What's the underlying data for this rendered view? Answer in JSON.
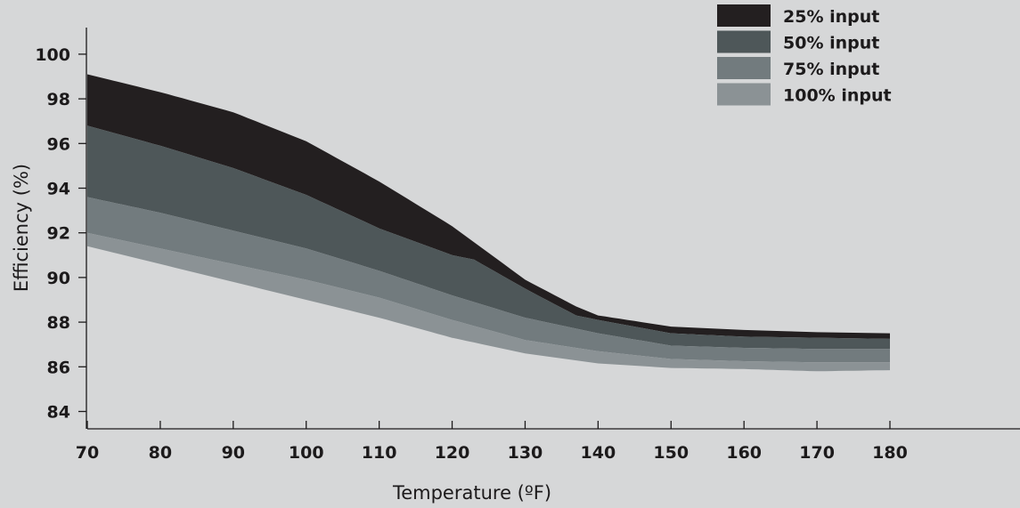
{
  "chart_data": {
    "type": "area",
    "title": "",
    "xlabel": "Temperature (ºF)",
    "ylabel": "Efficiency (%)",
    "xlim": [
      70,
      180
    ],
    "ylim": [
      83,
      101
    ],
    "x_ticks": [
      "70",
      "80",
      "90",
      "100",
      "110",
      "120",
      "130",
      "140",
      "150",
      "160",
      "170",
      "180"
    ],
    "y_ticks": [
      "84",
      "86",
      "88",
      "90",
      "92",
      "94",
      "96",
      "98",
      "100"
    ],
    "grid": false,
    "legend_position": "top-right",
    "series": [
      {
        "name": "25% input",
        "color": "#231f20",
        "x": [
          70,
          80,
          90,
          100,
          110,
          120,
          130,
          137,
          140,
          150,
          160,
          170,
          180
        ],
        "values": [
          99.1,
          98.3,
          97.4,
          96.1,
          94.3,
          92.3,
          89.9,
          88.7,
          88.3,
          87.8,
          87.65,
          87.55,
          87.5
        ]
      },
      {
        "name": "50% input",
        "color": "#4e5759",
        "x": [
          70,
          80,
          90,
          100,
          110,
          120,
          123,
          130,
          137,
          140,
          150,
          160,
          170,
          180
        ],
        "values": [
          96.8,
          95.9,
          94.9,
          93.7,
          92.2,
          91.0,
          90.8,
          89.5,
          88.3,
          88.1,
          87.5,
          87.35,
          87.3,
          87.25
        ]
      },
      {
        "name": "75% input",
        "color": "#727b7e",
        "x": [
          70,
          80,
          90,
          100,
          110,
          120,
          130,
          140,
          150,
          160,
          170,
          180
        ],
        "values": [
          93.6,
          92.9,
          92.1,
          91.3,
          90.3,
          89.2,
          88.2,
          87.5,
          86.95,
          86.85,
          86.8,
          86.8
        ]
      },
      {
        "name": "100% input",
        "color": "#8b9295",
        "x": [
          70,
          80,
          90,
          100,
          110,
          120,
          130,
          140,
          150,
          160,
          170,
          180
        ],
        "values": [
          92.0,
          91.3,
          90.6,
          89.9,
          89.1,
          88.1,
          87.2,
          86.7,
          86.35,
          86.25,
          86.2,
          86.2
        ]
      }
    ],
    "baseline": {
      "x": [
        70,
        80,
        90,
        100,
        110,
        120,
        130,
        140,
        150,
        160,
        170,
        180
      ],
      "values": [
        91.4,
        90.6,
        89.8,
        89.0,
        88.2,
        87.3,
        86.6,
        86.15,
        85.95,
        85.9,
        85.8,
        85.85
      ]
    }
  }
}
